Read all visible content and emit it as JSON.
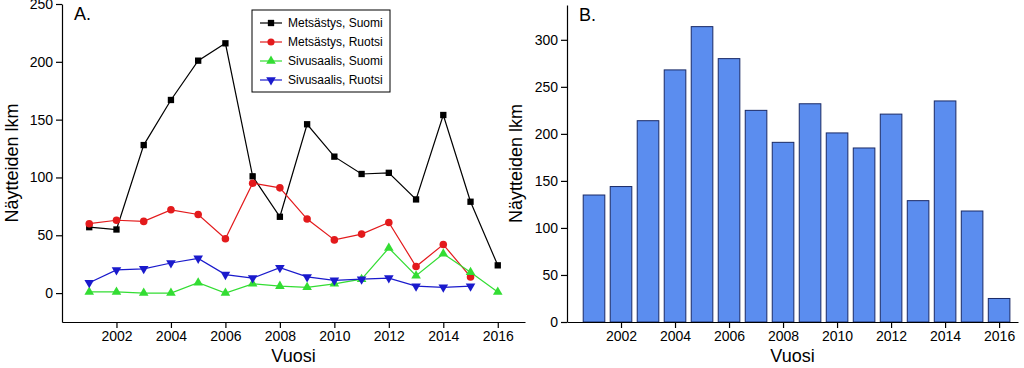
{
  "chart_data": [
    {
      "type": "line",
      "title": "A.",
      "x_label": "Vuosi",
      "y_label": "Näytteiden lkm",
      "x": [
        2001,
        2002,
        2003,
        2004,
        2005,
        2006,
        2007,
        2008,
        2009,
        2010,
        2011,
        2012,
        2013,
        2014,
        2015,
        2016
      ],
      "xlim": [
        2000,
        2017
      ],
      "xticks": [
        2002,
        2004,
        2006,
        2008,
        2010,
        2012,
        2014,
        2016
      ],
      "ylim": [
        -25,
        250
      ],
      "yticks": [
        0,
        50,
        100,
        150,
        200,
        250
      ],
      "legend": "upper right",
      "series": [
        {
          "name": "Metsästys, Suomi",
          "color": "#000000",
          "marker": "square",
          "values": [
            57,
            55,
            128,
            167,
            201,
            216,
            101,
            66,
            146,
            118,
            103,
            104,
            81,
            154,
            79,
            24
          ]
        },
        {
          "name": "Metsästys, Ruotsi",
          "color": "#e31a1c",
          "marker": "circle",
          "values": [
            60,
            63,
            62,
            72,
            68,
            47,
            95,
            91,
            64,
            46,
            51,
            61,
            23,
            42,
            14,
            null
          ]
        },
        {
          "name": "Sivusaalis, Suomi",
          "color": "#33dd33",
          "marker": "triangle-up",
          "values": [
            1,
            1,
            0,
            0,
            9,
            0,
            8,
            6,
            5,
            8,
            12,
            39,
            15,
            34,
            18,
            1
          ]
        },
        {
          "name": "Sivusaalis, Ruotsi",
          "color": "#1a1acc",
          "marker": "triangle-down",
          "values": [
            9,
            20,
            21,
            26,
            30,
            16,
            13,
            22,
            14,
            11,
            12,
            13,
            6,
            5,
            6,
            null
          ]
        }
      ]
    },
    {
      "type": "bar",
      "title": "B.",
      "x_label": "Vuosi",
      "y_label": "Näytteiden lkm",
      "x": [
        2001,
        2002,
        2003,
        2004,
        2005,
        2006,
        2007,
        2008,
        2009,
        2010,
        2011,
        2012,
        2013,
        2014,
        2015,
        2016
      ],
      "values": [
        135,
        144,
        214,
        268,
        314,
        280,
        225,
        191,
        232,
        201,
        185,
        221,
        129,
        235,
        118,
        25
      ],
      "color": "#5b8def",
      "xlim": [
        2000,
        2016.7
      ],
      "xticks": [
        2002,
        2004,
        2006,
        2008,
        2010,
        2012,
        2014,
        2016
      ],
      "ylim": [
        0,
        337
      ],
      "yticks": [
        0,
        50,
        100,
        150,
        200,
        250,
        300
      ]
    }
  ]
}
